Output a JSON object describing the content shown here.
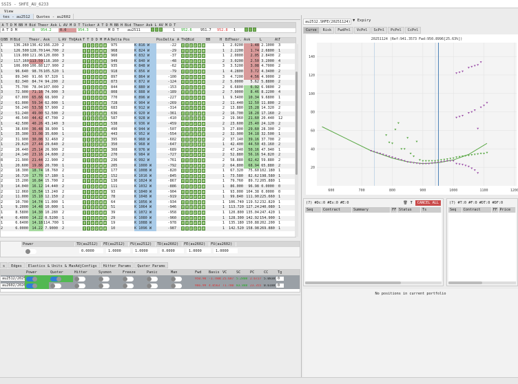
{
  "window": {
    "title": "SSIS - SHFE_AU_6233"
  },
  "menu": {
    "view": "View"
  },
  "tabs": [
    {
      "label": "tes - au2512",
      "active": true
    },
    {
      "label": "Quotes - au2602",
      "active": false
    }
  ],
  "futures": {
    "headers": [
      "A",
      "T",
      "D",
      "M",
      "BB",
      "H",
      "Bid",
      "Theor",
      "Ask",
      "L",
      "AV",
      "M",
      "D",
      "T",
      "Ticker",
      "A",
      "T",
      "D",
      "M",
      "BB",
      "H",
      "Bid",
      "Theor",
      "Ask",
      "L",
      "AV",
      "M",
      "D",
      "T"
    ],
    "left": {
      "flags": "A T D M",
      "bb": "8",
      "bid": "954.2",
      "theor": "0.0",
      "ask": "954.3",
      "av": "1",
      "mdt": "M D T"
    },
    "ticker": "au2511",
    "right": {
      "bb": "1",
      "bid": "952.6",
      "theor": "951.7",
      "ask": "952.8",
      "av": "1"
    }
  },
  "grid": {
    "headers": [
      "Q",
      "BB",
      "H",
      "Bid",
      "Theor.",
      "Ask",
      "L",
      "AV",
      "ThQAsk",
      "T T D D M M",
      "A",
      "Delta",
      "Pos",
      "",
      "Pos",
      "Delta",
      "A M M D D T T",
      "ThQBid",
      "BB",
      "H",
      "Bid",
      "Theor.",
      "Ask",
      "L",
      "AV",
      "T"
    ],
    "box_labels": [
      "T",
      "T",
      "D",
      "D",
      "M",
      "M",
      "T"
    ],
    "rows": [
      [
        "1",
        "136.260",
        "136.42",
        "166.220",
        "2",
        "975",
        "K 816 W",
        "-22",
        "1",
        "2.0200",
        "1.48",
        "2.1000",
        "3",
        "",
        "r"
      ],
      [
        "1",
        "126.500",
        "128.70",
        "144.700",
        "2",
        "968",
        "K 824 W",
        "-29",
        "1",
        "2.2200",
        "1.74",
        "2.6800",
        "1",
        "",
        "r"
      ],
      [
        "1",
        "119.000",
        "121.06",
        "120.000",
        "3",
        "960",
        "K 832 W",
        "-37",
        "1",
        "2.0000",
        "2.05",
        "2.8400",
        "2",
        "",
        "r"
      ],
      [
        "2",
        "117.160",
        "113.59",
        "118.160",
        "2",
        "949",
        "K 840 W",
        "-48",
        "2",
        "3.0200",
        "2.50",
        "3.2000",
        "4",
        "r",
        "r"
      ],
      [
        "1",
        "106.000",
        "106.88",
        "127.900",
        "2",
        "935",
        "K 848 W",
        "-62",
        "3",
        "3.5200",
        "3.08",
        "4.7000",
        "2",
        "",
        "r"
      ],
      [
        "1",
        "96.640",
        "98.76",
        "105.520",
        "1",
        "918",
        "K 856 W",
        "-79",
        "1",
        "4.2800",
        "3.72",
        "4.3400",
        "2",
        "",
        "r"
      ],
      [
        "1",
        "89.340",
        "91.66",
        "97.320",
        "1",
        "897",
        "K 864 W",
        "-100",
        "3",
        "4.7200",
        "4.56",
        "4.9000",
        "2",
        "",
        "r"
      ],
      [
        "1",
        "82.340",
        "84.74",
        "94.200",
        "2",
        "873",
        "K 872 W",
        "-124",
        "2",
        "5.0000",
        "5.62",
        "5.8800",
        "2",
        "",
        ""
      ],
      [
        "1",
        "75.700",
        "78.04",
        "107.000",
        "2",
        "844",
        "K 880 W",
        "-153",
        "2",
        "6.6800",
        "6.92",
        "6.9800",
        "2",
        "",
        "g"
      ],
      [
        "3",
        "72.900",
        "71.16",
        "74.900",
        "3",
        "808",
        "K 888 W",
        "-189",
        "2",
        "7.9000",
        "8.46",
        "8.2200",
        "4",
        "r",
        "g"
      ],
      [
        "2",
        "67.000",
        "65.66",
        "68.900",
        "2",
        "770",
        "K 896 W",
        "-227",
        "1",
        "9.5400",
        "10.34",
        "9.6800",
        "1",
        "r",
        "g"
      ],
      [
        "2",
        "61.000",
        "59.34",
        "62.000",
        "1",
        "728",
        "K 904 W",
        "-269",
        "2",
        "11.440",
        "12.50",
        "11.800",
        "2",
        "r",
        "g"
      ],
      [
        "2",
        "56.240",
        "53.58",
        "57.900",
        "2",
        "683",
        "K 912 W",
        "-314",
        "2",
        "13.880",
        "15.28",
        "14.320",
        "2",
        "r",
        "g"
      ],
      [
        "2",
        "51.240",
        "49.00",
        "52.500",
        "2",
        "636",
        "K 920 W",
        "-361",
        "2",
        "16.700",
        "18.28",
        "17.160",
        "2",
        "r",
        "g"
      ],
      [
        "2",
        "46.540",
        "44.42",
        "47.700",
        "2",
        "587",
        "K 928 W",
        "-410",
        "2",
        "19.960",
        "21.60",
        "20.440",
        "12",
        "r",
        "g"
      ],
      [
        "1",
        "42.500",
        "40.26",
        "43.140",
        "3",
        "538",
        "K 936 W",
        "-459",
        "2",
        "23.600",
        "25.40",
        "24.120",
        "2",
        "r",
        "g"
      ],
      [
        "1",
        "38.600",
        "36.48",
        "38.900",
        "1",
        "490",
        "K 944 W",
        "-507",
        "3",
        "27.800",
        "29.60",
        "28.300",
        "2",
        "r",
        "g"
      ],
      [
        "1",
        "35.300",
        "33.08",
        "35.600",
        "1",
        "443",
        "K 952 W",
        "-554",
        "2",
        "32.900",
        "34.18",
        "32.500",
        "1",
        "r",
        "g"
      ],
      [
        "2",
        "31.900",
        "30.08",
        "32.460",
        "2",
        "395",
        "K 960 W",
        "-602",
        "2",
        "37.140",
        "39.16",
        "37.700",
        "2",
        "r",
        "g"
      ],
      [
        "1",
        "29.620",
        "27.44",
        "29.640",
        "2",
        "350",
        "K 968 W",
        "-647",
        "1",
        "42.400",
        "44.50",
        "43.160",
        "2",
        "r",
        "g"
      ],
      [
        "2",
        "26.440",
        "25.14",
        "26.900",
        "2",
        "308",
        "K 976 W",
        "-689",
        "2",
        "47.240",
        "50.16",
        "47.940",
        "1",
        "r",
        "g"
      ],
      [
        "2",
        "24.140",
        "23.16",
        "24.600",
        "2",
        "270",
        "K 984 W",
        "-727",
        "2",
        "52.880",
        "56.16",
        "54.820",
        "2",
        "r",
        "g"
      ],
      [
        "8",
        "21.900",
        "21.44",
        "22.900",
        "2",
        "236",
        "K 992 W",
        "-761",
        "2",
        "58.880",
        "62.42",
        "59.880",
        "2",
        "r",
        "g"
      ],
      [
        "1",
        "20.600",
        "19.86",
        "20.700",
        "1",
        "205",
        "K 1000 W",
        "-792",
        "2",
        "64.800",
        "68.94",
        "65.880",
        "2",
        "r",
        "g"
      ],
      [
        "2",
        "18.300",
        "18.74",
        "18.760",
        "2",
        "177",
        "K 1008 W",
        "-820",
        "1",
        "67.320",
        "75.60",
        "102.180",
        "1",
        "g",
        ""
      ],
      [
        "2",
        "16.720",
        "17.70",
        "17.180",
        "1",
        "152",
        "K 1016 W",
        "-845",
        "1",
        "73.580",
        "82.62",
        "198.580",
        "1",
        "g",
        ""
      ],
      [
        "2",
        "15.200",
        "16.84",
        "15.700",
        "2",
        "130",
        "K 1024 W",
        "-867",
        "1",
        "79.760",
        "89.72",
        "205.880",
        "1",
        "g",
        ""
      ],
      [
        "3",
        "14.040",
        "16.12",
        "14.440",
        "2",
        "111",
        "K 1032 W",
        "-886",
        "1",
        "86.000",
        "96.98",
        "0.0000",
        "0",
        "g",
        ""
      ],
      [
        "2",
        "12.060",
        "15.54",
        "13.240",
        "2",
        "93",
        "K 1040 W",
        "-904",
        "1",
        "93.000",
        "104.38",
        "0.0000",
        "0",
        "g",
        ""
      ],
      [
        "2",
        "11.000",
        "15.10",
        "12.150",
        "2",
        "78",
        "K 1048 W",
        "-919",
        "1",
        "99.840",
        "111.90",
        "225.660",
        "1",
        "g",
        ""
      ],
      [
        "2",
        "10.700",
        "14.74",
        "11.000",
        "1",
        "64",
        "K 1056 W",
        "-934",
        "1",
        "106.740",
        "119.52",
        "232.820",
        "1",
        "g",
        ""
      ],
      [
        "1",
        "9.2000",
        "14.48",
        "10.000",
        "1",
        "51",
        "K 1064 W",
        "-946",
        "1",
        "113.720",
        "127.24",
        "240.080",
        "1",
        "g",
        ""
      ],
      [
        "1",
        "8.5800",
        "14.30",
        "10.280",
        "2",
        "39",
        "K 1072 W",
        "-958",
        "1",
        "120.800",
        "135.04",
        "247.420",
        "1",
        "g",
        ""
      ],
      [
        "4",
        "0.4000",
        "14.22",
        "0.5200",
        "1",
        "29",
        "K 1080 W",
        "-960",
        "1",
        "128.300",
        "142.92",
        "154.900",
        "1",
        "g",
        ""
      ],
      [
        "1",
        "6.6400",
        "14.18",
        "114.700",
        "1",
        "19",
        "K 1088 W",
        "-978",
        "1",
        "135.180",
        "150.88",
        "202.200",
        "1",
        "g",
        ""
      ],
      [
        "2",
        "6.0000",
        "14.22",
        "7.9000",
        "2",
        "10",
        "K 1096 W",
        "-987",
        "1",
        "142.520",
        "158.98",
        "269.880",
        "1",
        "g",
        ""
      ]
    ]
  },
  "params": {
    "headers": [
      "Power",
      "TD(au2512)",
      "FE(au2512)",
      "FU(au2512)",
      "TD(au2602)",
      "FE(au2602)",
      "FU(au2602)"
    ],
    "values": [
      "0.0000",
      "1.0000",
      "1.0000",
      "0.0000",
      "1.0000",
      "1.0000"
    ]
  },
  "strategy_tabs": [
    "s",
    "Edges",
    "Elastics & Units & MaxAdjConfigs",
    "Hitter Params",
    "Quoter Params"
  ],
  "strategy": {
    "headers": [
      "",
      "Power",
      "Quoter",
      "Hitter",
      "Sysmon",
      "Freeze",
      "Panic",
      "Man",
      "Fwd",
      "Basis",
      "VC",
      "SC",
      "PC",
      "CC",
      "Tg"
    ],
    "rows": [
      {
        "name": "au2512/2025",
        "toggles": [
          true,
          true,
          false,
          false,
          false,
          false,
          false
        ],
        "fwd": "950.90",
        "basis": "-1.7806",
        "vc": "25.687",
        "sc": "5.2808",
        "pc": "2.6727",
        "cc": "5.0838",
        "tg": "0"
      },
      {
        "name": "au2602/2026",
        "toggles": [
          true,
          false,
          false,
          false,
          false,
          false,
          false
        ],
        "fwd": "966.99",
        "basis": "4.0563",
        "vc": "71.780",
        "sc": "83.888",
        "pc": "23.355",
        "cc": "0.6188",
        "tg": "0"
      }
    ]
  },
  "right": {
    "ticker_select": "au2512.SHFE(20251124)",
    "expiry_label": "Expiry",
    "chart_tabs": [
      "Curve",
      "Risk",
      "FwdPnl",
      "VcPnl",
      "ScPnl",
      "PcPnl",
      "CcPnl"
    ],
    "orders": {
      "summary": "(7) #Dc:0 #Ex:0 #E:0",
      "cancel_all": "CANCEL ALL",
      "columns": [
        "Seq",
        "Contract",
        "Summary",
        "FF",
        "Status",
        "Ts"
      ]
    },
    "trades": {
      "summary": "(7) #T:0 #F:0 #DT:0 #DF:0",
      "columns": [
        "Seq",
        "Contract",
        "FF",
        "Price"
      ]
    },
    "positions_empty": "No positions in current portfolio"
  },
  "chart_data": {
    "type": "scatter",
    "title": "20251124 (Ref:941.3573 Fwd:950.8996[25.63%])",
    "xlim": [
      553,
      1207
    ],
    "ylim": [
      0,
      155
    ],
    "xticks": [
      600,
      700,
      800,
      900,
      1000,
      1100,
      1200
    ],
    "yticks": [
      20,
      40,
      60,
      80,
      100,
      120,
      140
    ],
    "grid": true,
    "vlines": [
      741,
      941,
      951
    ],
    "series": [
      {
        "kind": "line",
        "color": "#5aa845",
        "x": [
          570,
          650,
          730,
          800,
          850,
          900,
          950,
          1000,
          1050,
          1110
        ],
        "y": [
          64,
          51,
          38,
          30,
          26,
          24,
          25,
          28,
          34,
          46
        ]
      },
      {
        "kind": "points",
        "color": "#9b4fa8",
        "x": [
          730,
          740,
          750,
          760,
          770,
          780,
          790,
          800,
          810,
          820,
          830,
          840,
          850,
          860,
          870,
          880,
          890,
          900,
          910,
          920,
          930,
          940,
          950,
          960,
          970,
          980,
          990,
          1000,
          1010,
          1020,
          1030,
          1040,
          1050,
          1060,
          1070,
          1080
        ],
        "y": [
          38,
          37,
          36,
          35,
          34,
          33,
          32,
          31,
          30,
          29,
          28,
          27,
          26,
          25.5,
          25,
          24.5,
          24,
          24,
          24,
          24,
          24.5,
          25,
          25.5,
          26,
          26.5,
          27,
          27,
          27,
          24,
          23.5,
          23,
          22,
          21,
          19,
          17,
          14
        ]
      },
      {
        "kind": "points",
        "color": "#5aa845",
        "x": [
          780,
          790,
          800,
          810,
          820,
          830,
          840,
          850,
          860,
          870,
          880,
          890,
          900,
          910,
          920,
          930,
          940,
          950,
          960,
          970,
          980,
          990,
          1000,
          1010,
          1020,
          1030,
          1040,
          1050,
          1060,
          1070,
          1080,
          1090,
          1100,
          1110
        ],
        "y": [
          55,
          47,
          46,
          61,
          68,
          40,
          40,
          52,
          35,
          32,
          48,
          28,
          27,
          27,
          27,
          27,
          27,
          27.5,
          28,
          28.5,
          29,
          29.5,
          30,
          31,
          31.5,
          32,
          32.5,
          33,
          33.5,
          34,
          34.5,
          35,
          35,
          36
        ]
      },
      {
        "kind": "points",
        "color": "#9b4fa8",
        "x": [
          1010,
          1020,
          1030,
          1050,
          1060,
          1070,
          1080,
          1090,
          1100,
          1110,
          1010,
          1020,
          1030,
          1050,
          1060,
          1070,
          1080,
          1090
        ],
        "y": [
          74,
          75,
          76,
          79,
          80,
          82,
          62,
          85,
          87,
          90,
          122,
          123,
          124,
          128,
          129,
          130,
          131,
          134
        ]
      }
    ]
  }
}
